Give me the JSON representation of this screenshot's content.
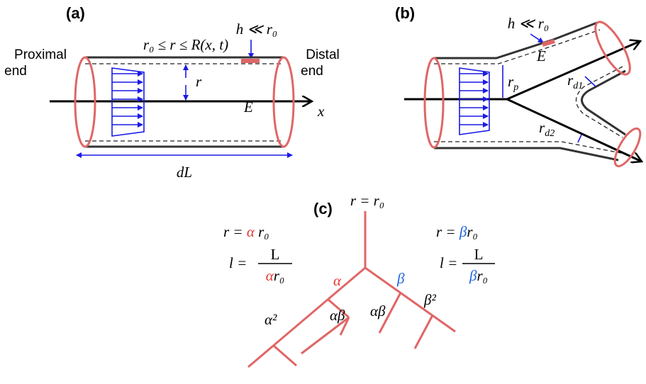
{
  "panel_a": {
    "label": "(a)",
    "radius_range": "r₀ ≤ r ≤ R(x, t)",
    "wall": "h ≪ r₀",
    "proximal": [
      "Proximal",
      "end"
    ],
    "distal": [
      "Distal",
      "end"
    ],
    "radius": "r",
    "modulus": "E",
    "axis": "x",
    "length": "dL"
  },
  "panel_b": {
    "label": "(b)",
    "wall": "h ≪ r₀",
    "modulus": "E",
    "r_parent": {
      "base": "r",
      "sub": "p"
    },
    "r_daughter1": {
      "base": "r",
      "sub": "d1"
    },
    "r_daughter2": {
      "base": "r",
      "sub": "d2"
    }
  },
  "panel_c": {
    "label": "(c)",
    "root": "r = r₀",
    "left_radius": {
      "prefix": "r = ",
      "factor": "α",
      "suffix": " r₀"
    },
    "left_length": {
      "prefix": "l = ",
      "numerator": "L",
      "factor": "α",
      "suffix": "r₀"
    },
    "right_radius": {
      "prefix": "r = ",
      "factor": "β",
      "suffix": "r₀"
    },
    "right_length": {
      "prefix": "l = ",
      "numerator": "L",
      "factor": "β",
      "suffix": "r₀"
    },
    "branch_labels": [
      "α",
      "β",
      "α²",
      "αβ",
      "αβ",
      "β²"
    ]
  }
}
